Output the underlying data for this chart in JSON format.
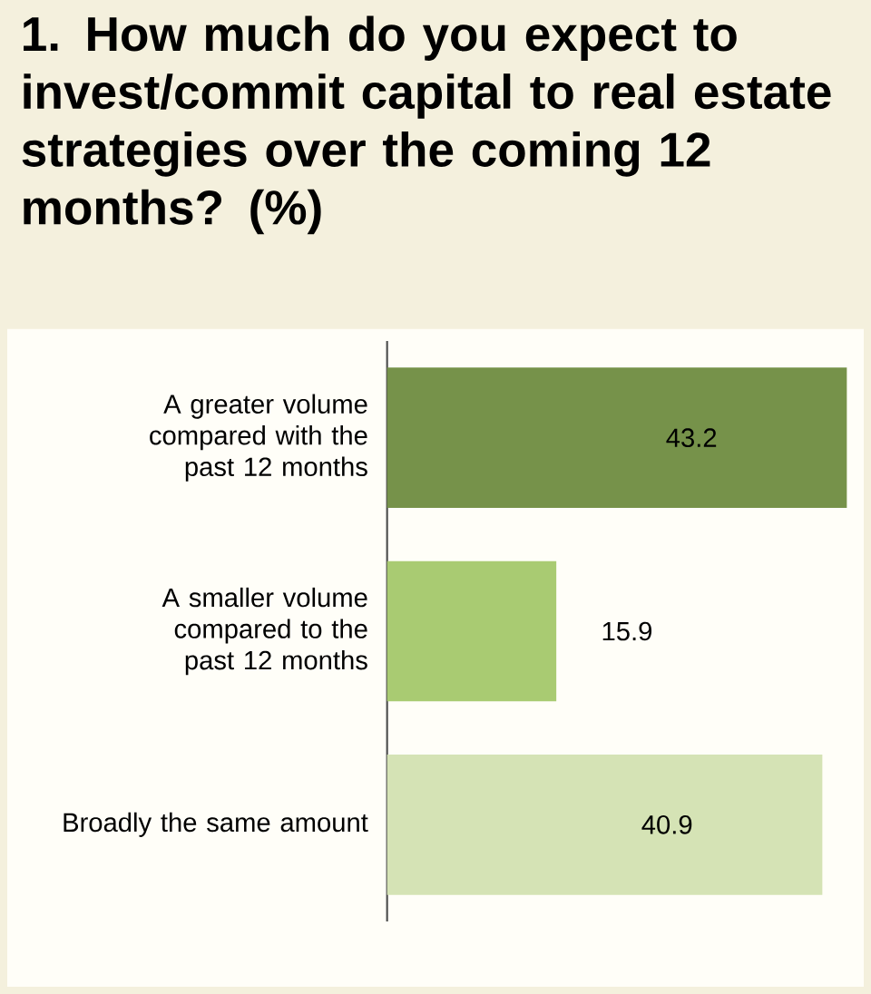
{
  "chart_data": {
    "type": "bar",
    "orientation": "horizontal",
    "title": "1. How much do you expect to invest/commit capital to real estate strategies over the coming 12 months? (%)",
    "categories": [
      "A greater volume compared with the past 12 months",
      "A smaller volume compared to the past 12 months",
      "Broadly the same amount"
    ],
    "values": [
      43.2,
      15.9,
      40.9
    ],
    "colors": [
      "#76924a",
      "#a9cb72",
      "#d5e3b5"
    ],
    "data_labels": true
  }
}
